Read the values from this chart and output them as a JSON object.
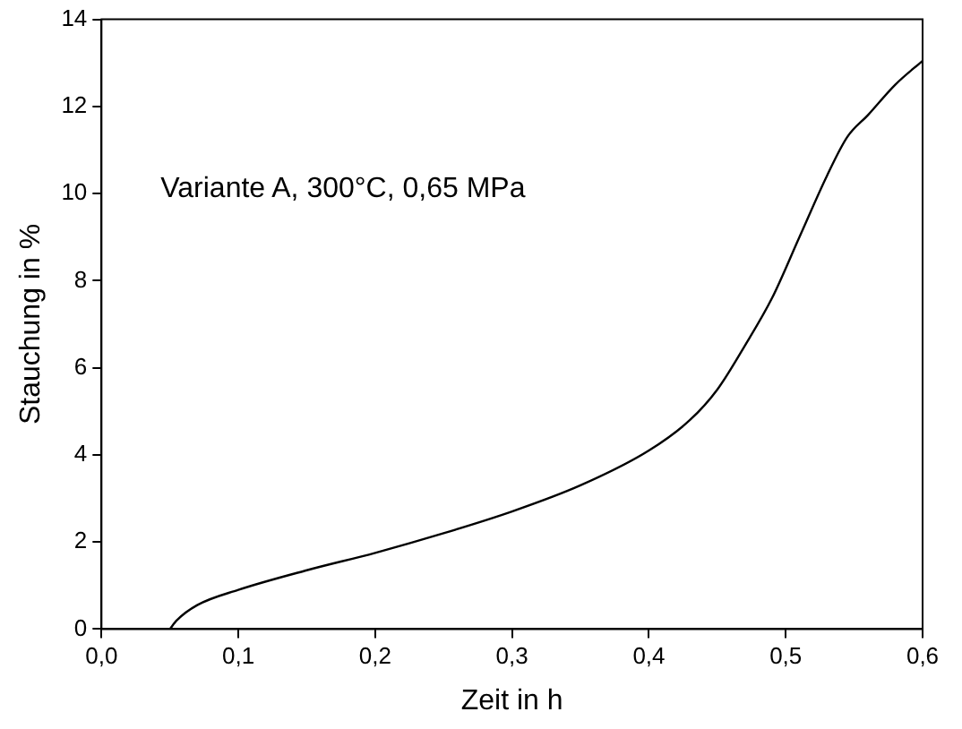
{
  "chart_data": {
    "type": "line",
    "xlabel": "Zeit in h",
    "ylabel": "Stauchung in %",
    "annotations": [
      "Variante A, 300°C, 0,65 MPa"
    ],
    "x": [
      0.05,
      0.055,
      0.07,
      0.1,
      0.15,
      0.2,
      0.25,
      0.3,
      0.35,
      0.4,
      0.43,
      0.45,
      0.47,
      0.49,
      0.51,
      0.53,
      0.545,
      0.56,
      0.58,
      0.6
    ],
    "series": [
      {
        "color": "#000000",
        "values": [
          0,
          0.2,
          0.55,
          0.9,
          1.35,
          1.75,
          2.2,
          2.7,
          3.3,
          4.1,
          4.8,
          5.5,
          6.5,
          7.6,
          9.0,
          10.4,
          11.3,
          11.8,
          12.5,
          13.05
        ]
      }
    ],
    "xlim": [
      0,
      0.6
    ],
    "ylim": [
      0,
      14
    ],
    "xticks": [
      {
        "value": 0,
        "label": "0,0"
      },
      {
        "value": 0.1,
        "label": "0,1"
      },
      {
        "value": 0.2,
        "label": "0,2"
      },
      {
        "value": 0.3,
        "label": "0,3"
      },
      {
        "value": 0.4,
        "label": "0,4"
      },
      {
        "value": 0.5,
        "label": "0,5"
      },
      {
        "value": 0.6,
        "label": "0,6"
      }
    ],
    "yticks": [
      0,
      2,
      4,
      6,
      8,
      10,
      12,
      14
    ],
    "grid": false,
    "legend": false,
    "marker": "none",
    "line_style": "solid"
  }
}
